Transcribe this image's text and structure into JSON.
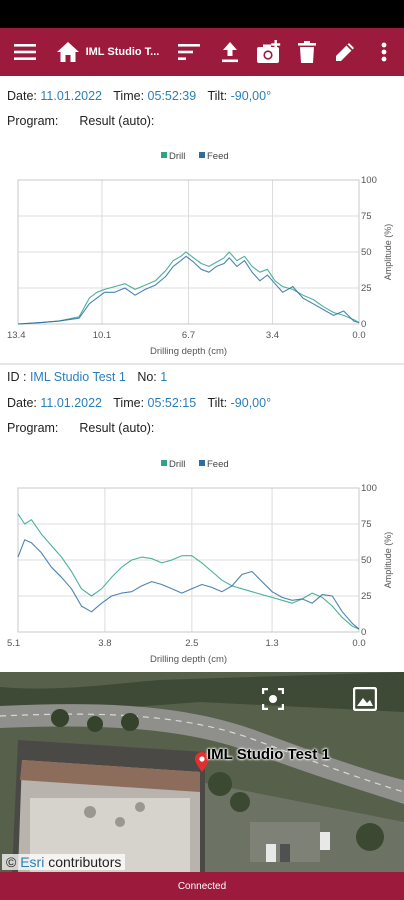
{
  "toolbar": {
    "title": "IML Studio T...",
    "icons": [
      "menu-icon",
      "home-icon",
      "sort-icon",
      "upload-icon",
      "camera-plus-icon",
      "trash-icon",
      "pencil-icon",
      "more-vert-icon"
    ]
  },
  "record1": {
    "date_label": "Date:",
    "date": "11.01.2022",
    "time_label": "Time:",
    "time": "05:52:39",
    "tilt_label": "Tilt:",
    "tilt": "-90,00°",
    "program_label": "Program:",
    "result_label": "Result (auto):"
  },
  "record2": {
    "id_label": "ID :",
    "id": "IML Studio Test 1",
    "no_label": "No:",
    "no": "1",
    "date_label": "Date:",
    "date": "11.01.2022",
    "time_label": "Time:",
    "time": "05:52:15",
    "tilt_label": "Tilt:",
    "tilt": "-90,00°",
    "program_label": "Program:",
    "result_label": "Result (auto):"
  },
  "chart_data": [
    {
      "type": "line",
      "xlabel": "Drilling depth (cm)",
      "ylabel": "Amplitude (%)",
      "x_ticks": [
        "13.4",
        "10.1",
        "6.7",
        "3.4",
        "0.0"
      ],
      "y_ticks": [
        "0",
        "25",
        "50",
        "75",
        "100"
      ],
      "xlim": [
        13.4,
        0.0
      ],
      "ylim": [
        0,
        100
      ],
      "legend": "top-center",
      "grid": true,
      "series": [
        {
          "name": "Drill",
          "color": "#2aa58a",
          "x": [
            13.4,
            12.5,
            11.8,
            11.0,
            10.6,
            10.3,
            10.0,
            9.6,
            9.2,
            8.8,
            8.4,
            8.0,
            7.6,
            7.3,
            7.0,
            6.8,
            6.5,
            6.2,
            5.9,
            5.6,
            5.3,
            5.1,
            4.8,
            4.5,
            4.2,
            3.9,
            3.6,
            3.3,
            3.0,
            2.6,
            2.2,
            1.8,
            1.4,
            1.0,
            0.6,
            0.2,
            0.0
          ],
          "y": [
            0,
            1,
            2,
            5,
            18,
            22,
            24,
            26,
            28,
            24,
            27,
            30,
            37,
            44,
            47,
            50,
            46,
            42,
            40,
            43,
            46,
            50,
            44,
            47,
            40,
            36,
            38,
            30,
            26,
            24,
            20,
            17,
            12,
            8,
            6,
            3,
            1
          ]
        },
        {
          "name": "Feed",
          "color": "#2e6da4",
          "x": [
            13.4,
            12.5,
            11.8,
            11.0,
            10.6,
            10.3,
            10.0,
            9.6,
            9.2,
            8.8,
            8.4,
            8.0,
            7.6,
            7.3,
            7.0,
            6.8,
            6.5,
            6.2,
            5.9,
            5.6,
            5.3,
            5.1,
            4.8,
            4.5,
            4.2,
            3.9,
            3.6,
            3.3,
            3.0,
            2.6,
            2.2,
            1.8,
            1.4,
            1.0,
            0.6,
            0.2,
            0.0
          ],
          "y": [
            0,
            1,
            2,
            4,
            14,
            18,
            22,
            22,
            25,
            20,
            24,
            27,
            33,
            40,
            44,
            47,
            43,
            38,
            36,
            40,
            42,
            46,
            40,
            44,
            36,
            30,
            34,
            28,
            22,
            26,
            18,
            14,
            10,
            6,
            9,
            2,
            1
          ]
        }
      ]
    },
    {
      "type": "line",
      "xlabel": "Drilling depth (cm)",
      "ylabel": "Amplitude (%)",
      "x_ticks": [
        "5.1",
        "3.8",
        "2.5",
        "1.3",
        "0.0"
      ],
      "y_ticks": [
        "0",
        "25",
        "50",
        "75",
        "100"
      ],
      "xlim": [
        5.1,
        0.0
      ],
      "ylim": [
        0,
        100
      ],
      "legend": "top-center",
      "grid": true,
      "series": [
        {
          "name": "Drill",
          "color": "#2aa58a",
          "x": [
            5.1,
            5.0,
            4.9,
            4.75,
            4.6,
            4.45,
            4.3,
            4.15,
            4.0,
            3.85,
            3.7,
            3.55,
            3.4,
            3.25,
            3.1,
            2.95,
            2.8,
            2.65,
            2.5,
            2.35,
            2.2,
            2.05,
            1.9,
            1.75,
            1.6,
            1.45,
            1.3,
            1.15,
            1.0,
            0.85,
            0.7,
            0.55,
            0.4,
            0.25,
            0.1,
            0.0
          ],
          "y": [
            82,
            75,
            78,
            68,
            60,
            52,
            42,
            30,
            25,
            30,
            38,
            45,
            50,
            52,
            51,
            48,
            50,
            53,
            53,
            48,
            42,
            36,
            32,
            30,
            28,
            26,
            24,
            22,
            20,
            23,
            27,
            24,
            18,
            10,
            4,
            2
          ]
        },
        {
          "name": "Feed",
          "color": "#2e6da4",
          "x": [
            5.1,
            5.0,
            4.9,
            4.75,
            4.6,
            4.45,
            4.3,
            4.15,
            4.0,
            3.85,
            3.7,
            3.55,
            3.4,
            3.25,
            3.1,
            2.95,
            2.8,
            2.65,
            2.5,
            2.35,
            2.2,
            2.05,
            1.9,
            1.75,
            1.6,
            1.45,
            1.3,
            1.15,
            1.0,
            0.85,
            0.7,
            0.55,
            0.4,
            0.25,
            0.1,
            0.0
          ],
          "y": [
            52,
            64,
            62,
            55,
            45,
            38,
            30,
            18,
            14,
            20,
            25,
            27,
            28,
            32,
            35,
            33,
            30,
            27,
            30,
            33,
            31,
            28,
            32,
            40,
            42,
            35,
            28,
            24,
            22,
            23,
            20,
            26,
            25,
            14,
            6,
            2
          ]
        }
      ]
    }
  ],
  "map": {
    "marker_label": "IML Studio Test 1",
    "attribution_prefix": "© ",
    "attribution_link": "Esri",
    "attribution_suffix": " contributors",
    "icons": [
      "fullscreen-focus-icon",
      "image-layer-icon",
      "location-pin-icon"
    ]
  },
  "status": {
    "connection": "Connected"
  },
  "colors": {
    "brand": "#9c1a3c",
    "value_text": "#2b7fb8",
    "drill": "#2aa58a",
    "feed": "#2e6da4"
  }
}
